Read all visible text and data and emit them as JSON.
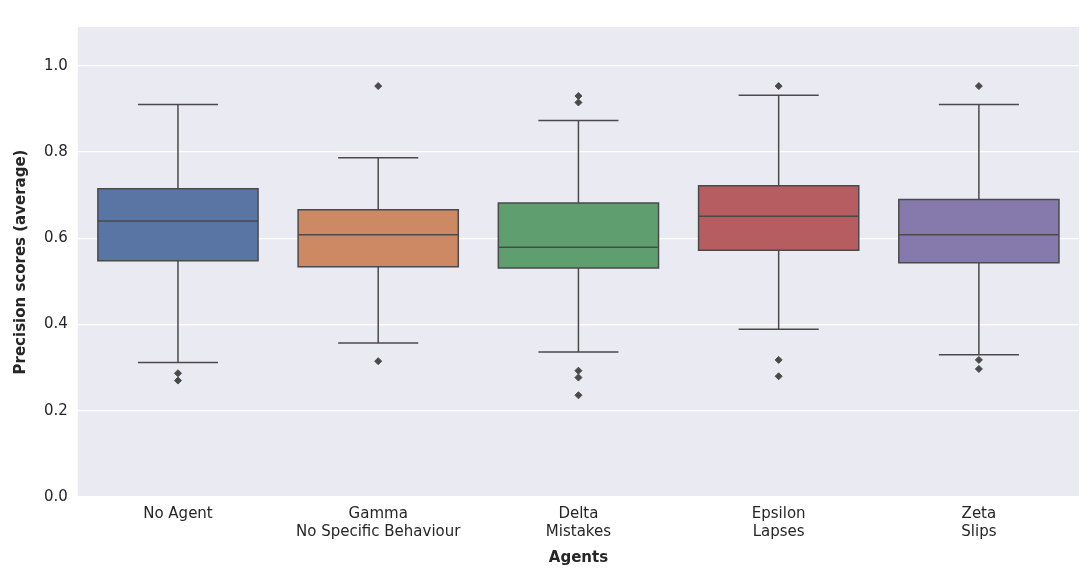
{
  "chart_data": {
    "type": "box",
    "xlabel": "Agents",
    "ylabel": "Precision scores (average)",
    "categories": [
      "No Agent",
      "Gamma\nNo Specific Behaviour",
      "Delta\nMistakes",
      "Epsilon\nLapses",
      "Zeta\nSlips"
    ],
    "colors": [
      "#5875a4",
      "#cc8963",
      "#5f9e6e",
      "#b55d60",
      "#857aab"
    ],
    "boxes": [
      {
        "low": 0.312,
        "q1": 0.548,
        "median": 0.64,
        "q3": 0.715,
        "high": 0.91,
        "outliers": [
          0.287,
          0.27
        ]
      },
      {
        "low": 0.357,
        "q1": 0.534,
        "median": 0.608,
        "q3": 0.666,
        "high": 0.787,
        "outliers": [
          0.953,
          0.315
        ]
      },
      {
        "low": 0.336,
        "q1": 0.531,
        "median": 0.579,
        "q3": 0.682,
        "high": 0.873,
        "outliers": [
          0.93,
          0.915,
          0.293,
          0.277,
          0.236
        ]
      },
      {
        "low": 0.389,
        "q1": 0.572,
        "median": 0.651,
        "q3": 0.722,
        "high": 0.932,
        "outliers": [
          0.953,
          0.318,
          0.28
        ]
      },
      {
        "low": 0.33,
        "q1": 0.543,
        "median": 0.608,
        "q3": 0.69,
        "high": 0.91,
        "outliers": [
          0.953,
          0.318,
          0.297
        ]
      }
    ],
    "ylim": [
      0,
      1.09
    ],
    "yticks": [
      {
        "value": 0,
        "label": "0.0"
      },
      0.2,
      0.4,
      0.6,
      0.8,
      {
        "value": 1,
        "label": "1.0"
      }
    ],
    "grid": "y",
    "marker": "diamond"
  }
}
